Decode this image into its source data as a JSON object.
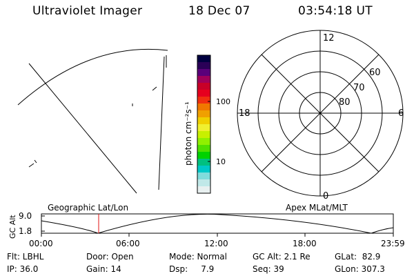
{
  "header": {
    "title": "Ultraviolet Imager",
    "date": "18 Dec 07",
    "time": "03:54:18 UT"
  },
  "colorbar": {
    "label": "photon cm⁻²s⁻¹",
    "ticks": [
      "100",
      "10"
    ],
    "colors": [
      "#000040",
      "#2a0057",
      "#5a007a",
      "#a0005a",
      "#c80028",
      "#e6001e",
      "#f03010",
      "#f07800",
      "#f0a000",
      "#f0d000",
      "#f0f030",
      "#c8f000",
      "#90f000",
      "#50e000",
      "#00d200",
      "#00c080",
      "#00c8c8",
      "#80dcdc",
      "#c0e8e8",
      "#e8f0f0"
    ]
  },
  "polar": {
    "mlt_labels": {
      "top": "12",
      "left": "18",
      "right": "6",
      "bottom": "0"
    },
    "lat_labels": [
      "60",
      "70",
      "80"
    ]
  },
  "timeline": {
    "ylabel": "GC Alt",
    "ymax": "9.0",
    "ymin": "1.8",
    "left_title": "Geographic Lat/Lon",
    "right_title": "Apex MLat/MLT",
    "xticks": [
      "00:00",
      "06:00",
      "12:00",
      "18:00",
      "23:59"
    ],
    "current_hours": 3.905
  },
  "info": {
    "flt": "Flt: LBHL",
    "door": "Door: Open",
    "mode": "Mode: Normal",
    "gcalt": "GC Alt: 2.1 Re",
    "glat": "GLat:  82.9",
    "ip": "IP: 36.0",
    "gain": "Gain: 14",
    "dsp": "Dsp:     7.9",
    "seq": "Seq: 39",
    "glon": "GLon: 307.3"
  }
}
